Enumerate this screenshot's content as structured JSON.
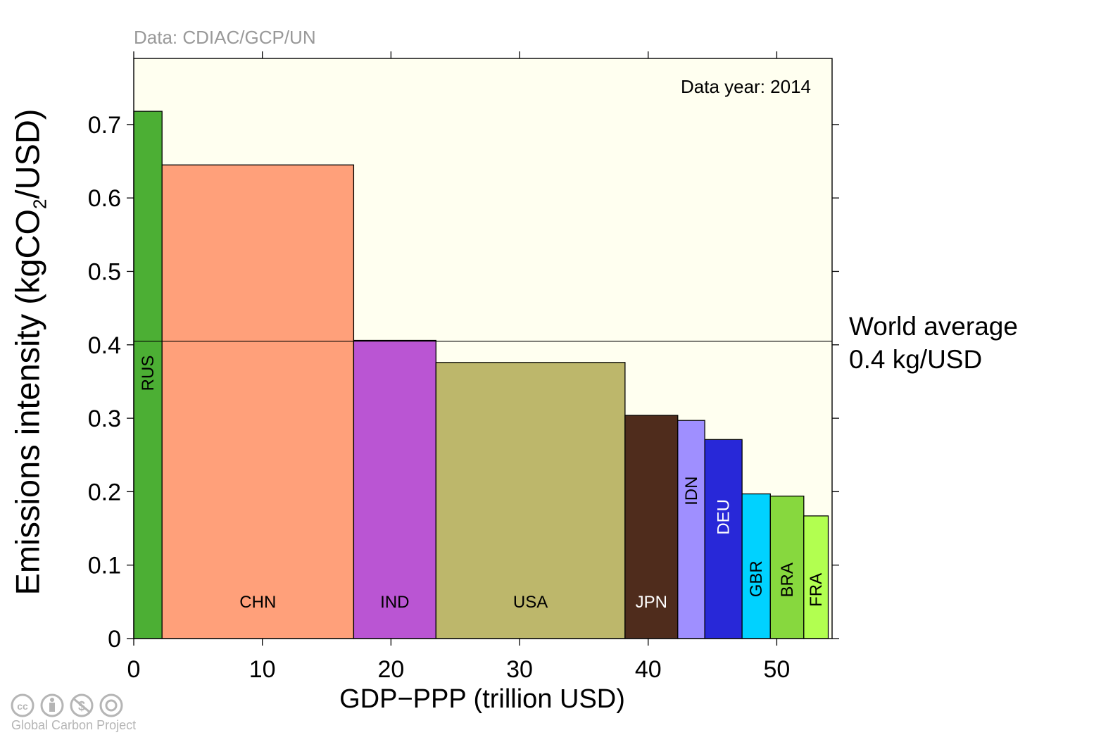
{
  "source_note": "Data: CDIAC/GCP/UN",
  "data_year": "Data year: 2014",
  "world_average": {
    "line1": "World average",
    "line2": "0.4 kg/USD"
  },
  "ylabel": {
    "main": "Emissions intensity (kgCO",
    "sub": "2",
    "end": "/USD)"
  },
  "xlabel": "GDP−PPP (trillion USD)",
  "footer": {
    "license_icons": [
      "cc-icon",
      "by-icon",
      "nc-icon",
      "sa-icon"
    ],
    "credit": "Global Carbon Project"
  },
  "colors": {
    "background": "#FFFFF0",
    "plot_bg": "#FFFFF0"
  },
  "chart_data": {
    "type": "bar",
    "variable_width": true,
    "categories": [
      "RUS",
      "CHN",
      "IND",
      "USA",
      "JPN",
      "IDN",
      "DEU",
      "GBR",
      "BRA",
      "FRA"
    ],
    "widths": [
      2.2,
      14.9,
      6.4,
      14.7,
      4.1,
      2.1,
      2.9,
      2.2,
      2.6,
      1.9
    ],
    "values": [
      0.718,
      0.645,
      0.406,
      0.376,
      0.304,
      0.297,
      0.271,
      0.197,
      0.194,
      0.167
    ],
    "colors": [
      "#4CAF34",
      "#FFA07A",
      "#BA55D3",
      "#BDB76B",
      "#4F2C1C",
      "#9F8FFF",
      "#2828D8",
      "#00D2FF",
      "#87D83E",
      "#B2FF50"
    ],
    "label_colors": [
      "#000000",
      "#000000",
      "#000000",
      "#000000",
      "#FFFFFF",
      "#000000",
      "#FFFFFF",
      "#000000",
      "#000000",
      "#000000"
    ],
    "label_rotated": [
      true,
      false,
      false,
      false,
      false,
      true,
      true,
      true,
      true,
      true
    ],
    "reference_line": 0.405,
    "xlim": [
      0,
      54.3
    ],
    "ylim": [
      0,
      0.79
    ],
    "xticks": [
      0,
      10,
      20,
      30,
      40,
      50
    ],
    "yticks": [
      0,
      0.1,
      0.2,
      0.3,
      0.4,
      0.5,
      0.6,
      0.7
    ],
    "ytick_labels": [
      "0",
      "0.1",
      "0.2",
      "0.3",
      "0.4",
      "0.5",
      "0.6",
      "0.7"
    ],
    "grid": false
  }
}
